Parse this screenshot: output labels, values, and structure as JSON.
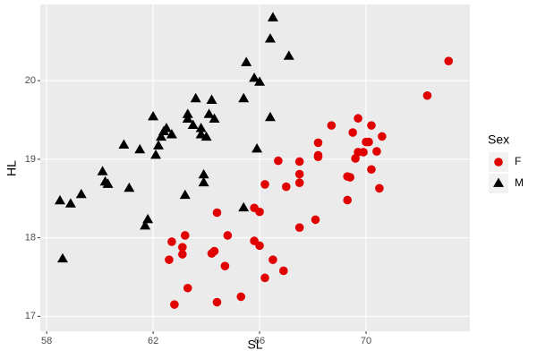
{
  "chart_data": {
    "type": "scatter",
    "x_label": "SL",
    "y_label": "HL",
    "xlim": [
      57.76,
      73.9
    ],
    "ylim": [
      16.81,
      20.97
    ],
    "xticks": [
      58,
      62,
      66,
      70
    ],
    "yticks": [
      17,
      18,
      19,
      20
    ],
    "grid": true,
    "legend_title": "Sex",
    "legend_position": "right",
    "series": [
      {
        "name": "F",
        "color": "#e00000",
        "marker": "circle",
        "x": [
          73.1,
          72.3,
          69.7,
          68.7,
          70.2,
          70.0,
          69.5,
          70.6,
          68.2,
          68.2,
          70.1,
          69.7,
          69.6,
          70.4,
          69.9,
          66.7,
          67.5,
          67.5,
          68.2,
          70.2,
          69.3,
          69.4,
          66.2,
          67.0,
          67.5,
          70.5,
          69.3,
          65.8,
          66.0,
          64.4,
          68.1,
          67.5,
          63.2,
          64.8,
          62.7,
          65.8,
          66.0,
          63.1,
          64.3,
          64.2,
          63.1,
          62.6,
          66.5,
          64.7,
          66.9,
          66.2,
          63.3,
          65.3,
          64.4,
          62.8
        ],
        "y": [
          20.25,
          19.81,
          19.52,
          19.43,
          19.43,
          19.22,
          19.34,
          19.29,
          19.21,
          19.05,
          19.22,
          19.09,
          19.01,
          19.1,
          19.09,
          18.98,
          18.97,
          18.81,
          19.03,
          18.87,
          18.78,
          18.77,
          18.68,
          18.65,
          18.7,
          18.63,
          18.48,
          18.38,
          18.33,
          18.32,
          18.23,
          18.13,
          18.03,
          18.03,
          17.95,
          17.96,
          17.9,
          17.88,
          17.83,
          17.8,
          17.79,
          17.72,
          17.72,
          17.64,
          17.58,
          17.49,
          17.36,
          17.25,
          17.18,
          17.15
        ]
      },
      {
        "name": "M",
        "color": "#000000",
        "marker": "triangle",
        "x": [
          66.5,
          66.4,
          67.1,
          65.5,
          65.8,
          66.0,
          63.6,
          64.2,
          65.4,
          63.3,
          64.1,
          64.3,
          62.0,
          63.3,
          66.4,
          63.5,
          63.8,
          62.4,
          62.5,
          63.8,
          62.7,
          62.3,
          64.0,
          60.9,
          61.5,
          62.2,
          65.9,
          62.1,
          63.9,
          60.1,
          60.2,
          60.3,
          63.9,
          63.2,
          61.1,
          59.3,
          58.5,
          58.9,
          61.8,
          61.7,
          65.4,
          58.6
        ],
        "y": [
          20.8,
          20.53,
          20.31,
          20.23,
          20.03,
          19.98,
          19.77,
          19.75,
          19.77,
          19.57,
          19.57,
          19.51,
          19.54,
          19.51,
          19.53,
          19.43,
          19.39,
          19.35,
          19.39,
          19.31,
          19.31,
          19.28,
          19.28,
          19.18,
          19.12,
          19.17,
          19.13,
          19.05,
          18.8,
          18.84,
          18.71,
          18.68,
          18.7,
          18.54,
          18.63,
          18.55,
          18.47,
          18.43,
          18.23,
          18.15,
          18.38,
          17.73
        ]
      }
    ]
  }
}
